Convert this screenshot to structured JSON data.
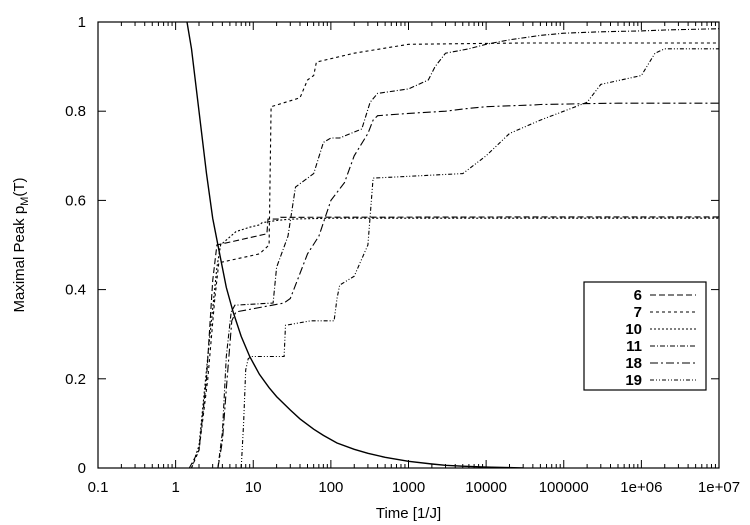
{
  "chart_data": {
    "type": "line",
    "xscale": "log",
    "xlim": [
      0.1,
      10000000
    ],
    "ylim": [
      0,
      1
    ],
    "xlabel": "Time [1/J]",
    "ylabel_main": "Maximal Peak p",
    "ylabel_sub": "M",
    "ylabel_tail": "(T)",
    "xticks": [
      {
        "value": 0.1,
        "label": "0.1"
      },
      {
        "value": 1,
        "label": "1"
      },
      {
        "value": 10,
        "label": "10"
      },
      {
        "value": 100,
        "label": "100"
      },
      {
        "value": 1000,
        "label": "1000"
      },
      {
        "value": 10000,
        "label": "10000"
      },
      {
        "value": 100000,
        "label": "100000"
      },
      {
        "value": 1000000,
        "label": "1e+06"
      },
      {
        "value": 10000000,
        "label": "1e+07"
      }
    ],
    "yticks": [
      {
        "value": 0,
        "label": "0"
      },
      {
        "value": 0.2,
        "label": "0.2"
      },
      {
        "value": 0.4,
        "label": "0.4"
      },
      {
        "value": 0.6,
        "label": "0.6"
      },
      {
        "value": 0.8,
        "label": "0.8"
      },
      {
        "value": 1,
        "label": "1"
      }
    ],
    "grid": false,
    "legend_placement": "lower-right",
    "decay_curve": {
      "x": [
        1.4,
        1.6,
        2,
        2.5,
        3,
        3.6,
        4.5,
        5.5,
        7,
        9,
        12,
        16,
        20,
        30,
        40,
        60,
        80,
        120,
        200,
        300,
        500,
        1000,
        2000,
        3000,
        5000,
        10000,
        20000,
        30000
      ],
      "y": [
        1.0,
        0.94,
        0.8,
        0.66,
        0.56,
        0.49,
        0.405,
        0.35,
        0.295,
        0.25,
        0.21,
        0.18,
        0.16,
        0.13,
        0.11,
        0.087,
        0.073,
        0.056,
        0.042,
        0.033,
        0.024,
        0.015,
        0.009,
        0.006,
        0.004,
        0.002,
        0.001,
        0.0
      ]
    },
    "series": [
      {
        "name": "6",
        "dash": "6,3",
        "x": [
          1.5,
          2,
          2.5,
          3,
          3.4,
          15,
          15.5,
          22,
          22.5,
          100000,
          10000000
        ],
        "y": [
          0,
          0.04,
          0.2,
          0.42,
          0.5,
          0.525,
          0.558,
          0.558,
          0.562,
          0.563,
          0.563
        ]
      },
      {
        "name": "7",
        "dash": "3,3",
        "x": [
          1.6,
          2,
          2.6,
          3.2,
          3.6,
          12,
          16,
          17,
          40,
          50,
          60,
          65,
          200,
          1000,
          10000,
          30000,
          100000,
          1000000,
          10000000
        ],
        "y": [
          0,
          0.04,
          0.2,
          0.38,
          0.46,
          0.48,
          0.5,
          0.81,
          0.83,
          0.87,
          0.88,
          0.91,
          0.93,
          0.95,
          0.952,
          0.953,
          0.953,
          0.953,
          0.953
        ]
      },
      {
        "name": "10",
        "dash": "2,2",
        "x": [
          1.6,
          2,
          2.6,
          3.4,
          3.8,
          6,
          9,
          12,
          13,
          20,
          30,
          100,
          300,
          1000,
          100000,
          10000000
        ],
        "y": [
          0,
          0.05,
          0.25,
          0.45,
          0.5,
          0.53,
          0.54,
          0.545,
          0.55,
          0.555,
          0.558,
          0.56,
          0.56,
          0.56,
          0.56,
          0.56
        ]
      },
      {
        "name": "11",
        "dash": "5,2,1,2",
        "x": [
          3.5,
          4,
          4.5,
          5.2,
          5.8,
          18,
          20,
          28,
          35,
          60,
          80,
          100,
          130,
          180,
          250,
          320,
          400,
          1000,
          1800,
          2200,
          3000,
          6000,
          10000,
          20000,
          50000,
          100000,
          300000,
          1000000,
          2000000,
          10000000
        ],
        "y": [
          0,
          0.08,
          0.25,
          0.35,
          0.365,
          0.37,
          0.45,
          0.52,
          0.63,
          0.66,
          0.73,
          0.74,
          0.74,
          0.75,
          0.76,
          0.82,
          0.84,
          0.85,
          0.87,
          0.9,
          0.93,
          0.94,
          0.95,
          0.96,
          0.97,
          0.975,
          0.978,
          0.98,
          0.982,
          0.985
        ]
      },
      {
        "name": "18",
        "dash": "8,3,2,3",
        "x": [
          3.5,
          4,
          4.6,
          5.3,
          6,
          25,
          30,
          35,
          50,
          70,
          100,
          150,
          200,
          300,
          350,
          400,
          1000,
          3000,
          5000,
          10000,
          20000,
          40000,
          50000,
          100000,
          200000,
          500000,
          10000000
        ],
        "y": [
          0,
          0.06,
          0.2,
          0.33,
          0.35,
          0.37,
          0.38,
          0.41,
          0.48,
          0.52,
          0.6,
          0.64,
          0.7,
          0.75,
          0.78,
          0.79,
          0.795,
          0.8,
          0.805,
          0.81,
          0.812,
          0.814,
          0.815,
          0.816,
          0.817,
          0.818,
          0.818
        ]
      },
      {
        "name": "19",
        "dash": "4,2,1,2,1,2",
        "x": [
          7,
          7.5,
          8,
          8.6,
          9.5,
          25,
          26,
          55,
          110,
          120,
          130,
          200,
          300,
          350,
          5000,
          10000,
          20000,
          50000,
          100000,
          200000,
          300000,
          1000000,
          1500000,
          2000000,
          10000000
        ],
        "y": [
          0,
          0.1,
          0.22,
          0.245,
          0.25,
          0.25,
          0.32,
          0.33,
          0.33,
          0.38,
          0.41,
          0.43,
          0.5,
          0.65,
          0.66,
          0.7,
          0.75,
          0.78,
          0.8,
          0.82,
          0.86,
          0.88,
          0.93,
          0.94,
          0.94
        ]
      }
    ]
  }
}
